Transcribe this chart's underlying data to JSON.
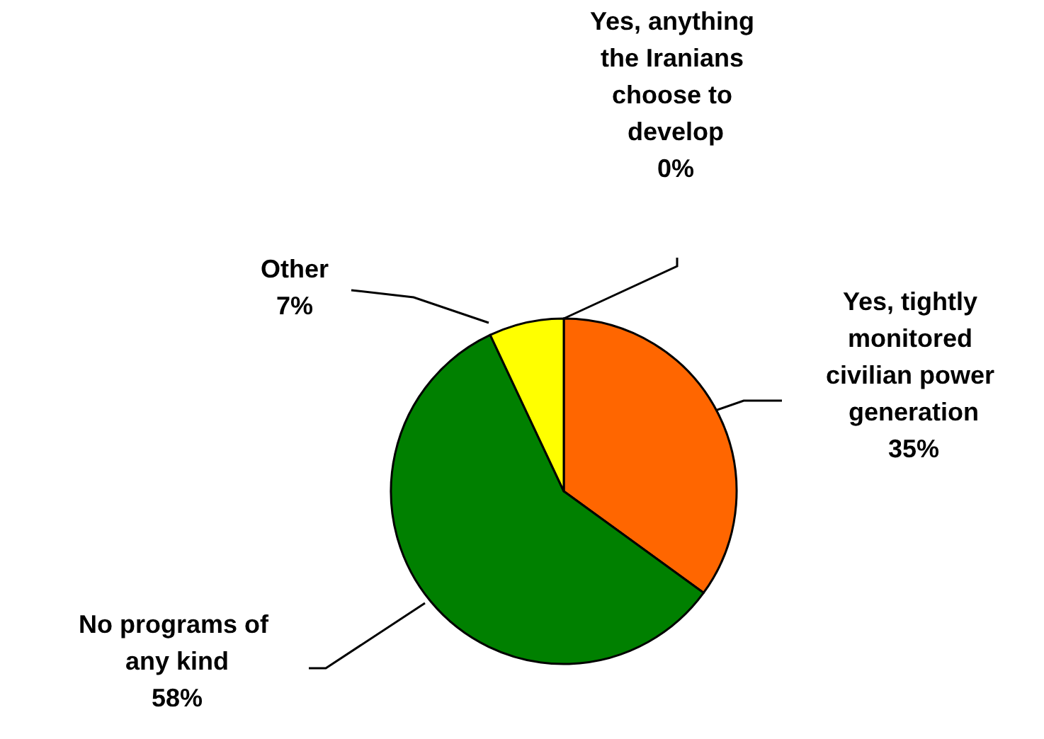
{
  "chart_data": {
    "type": "pie",
    "categories": [
      "Yes, anything the Iranians choose to develop",
      "Yes, tightly monitored civilian power generation",
      "No programs of any kind",
      "Other"
    ],
    "values": [
      0,
      35,
      58,
      7
    ],
    "value_labels": [
      "0%",
      "35%",
      "58%",
      "7%"
    ],
    "colors": [
      "#3366ff",
      "#ff6600",
      "#008000",
      "#ffff00"
    ]
  }
}
